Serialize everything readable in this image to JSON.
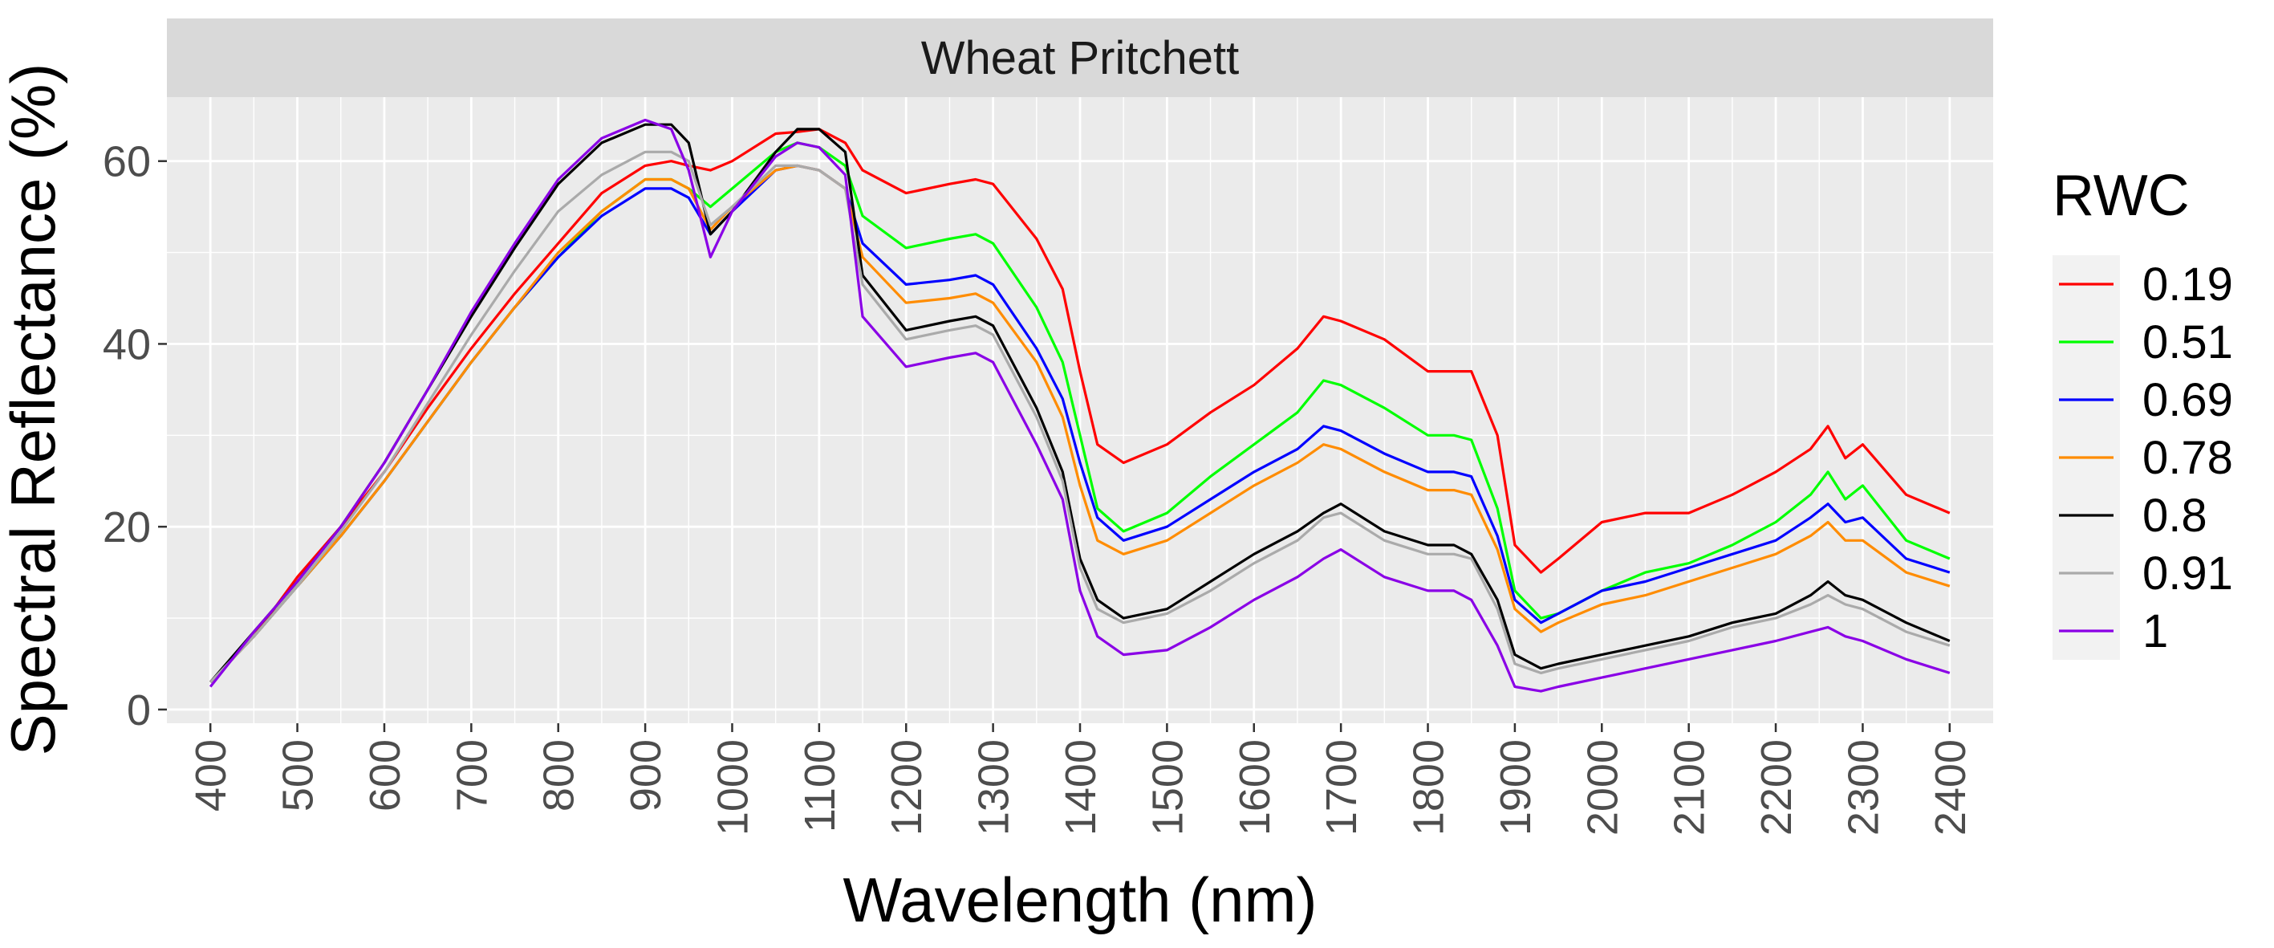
{
  "chart_data": {
    "type": "line",
    "facet_title": "Wheat Pritchett",
    "xlabel": "Wavelength (nm)",
    "ylabel": "Spectral Reflectance (%)",
    "xlim": [
      350,
      2450
    ],
    "ylim": [
      -1.5,
      67
    ],
    "x_ticks": [
      400,
      500,
      600,
      700,
      800,
      900,
      1000,
      1100,
      1200,
      1300,
      1400,
      1500,
      1600,
      1700,
      1800,
      1900,
      2000,
      2100,
      2200,
      2300,
      2400
    ],
    "x_tick_labels": [
      "400",
      "500",
      "600",
      "700",
      "800",
      "900",
      "1000",
      "1100",
      "1200",
      "1300",
      "1400",
      "1500",
      "1600",
      "1700",
      "1800",
      "1900",
      "2000",
      "2100",
      "2200",
      "2300",
      "2400"
    ],
    "y_ticks": [
      0,
      20,
      40,
      60
    ],
    "y_tick_labels": [
      "0",
      "20",
      "40",
      "60"
    ],
    "grid": true,
    "legend": {
      "title": "RWC",
      "position": "right"
    },
    "x": [
      400,
      450,
      500,
      550,
      600,
      650,
      700,
      750,
      800,
      850,
      900,
      930,
      950,
      975,
      1000,
      1050,
      1075,
      1100,
      1130,
      1150,
      1200,
      1250,
      1280,
      1300,
      1350,
      1380,
      1400,
      1420,
      1450,
      1500,
      1550,
      1600,
      1650,
      1680,
      1700,
      1750,
      1800,
      1830,
      1850,
      1880,
      1900,
      1930,
      1950,
      2000,
      2050,
      2100,
      2150,
      2200,
      2240,
      2260,
      2280,
      2300,
      2350,
      2400
    ],
    "series": [
      {
        "name": "0.19",
        "color": "#ff0000",
        "values": [
          3,
          8,
          14.5,
          20,
          26,
          33,
          39.5,
          45.5,
          51,
          56.5,
          59.5,
          60,
          59.5,
          59,
          60,
          63,
          63.2,
          63.5,
          62,
          59,
          56.5,
          57.5,
          58,
          57.5,
          51.5,
          46,
          37,
          29,
          27,
          29,
          32.5,
          35.5,
          39.5,
          43,
          42.5,
          40.5,
          37,
          37,
          37,
          30,
          18,
          15,
          16.5,
          20.5,
          21.5,
          21.5,
          23.5,
          26,
          28.5,
          31,
          27.5,
          29,
          23.5,
          21.5
        ]
      },
      {
        "name": "0.51",
        "color": "#00ff00",
        "values": [
          3,
          8,
          13.5,
          19,
          25,
          31.5,
          38,
          44,
          49.5,
          54.5,
          58,
          58,
          57,
          55,
          57,
          61,
          62,
          61.5,
          59.5,
          54,
          50.5,
          51.5,
          52,
          51,
          44,
          38,
          30,
          22,
          19.5,
          21.5,
          25.5,
          29,
          32.5,
          36,
          35.5,
          33,
          30,
          30,
          29.5,
          22,
          13,
          10,
          10.5,
          13,
          15,
          16,
          18,
          20.5,
          23.5,
          26,
          23,
          24.5,
          18.5,
          16.5
        ]
      },
      {
        "name": "0.69",
        "color": "#0000ff",
        "values": [
          3,
          8,
          13.5,
          19,
          25,
          31.5,
          38,
          44,
          49.5,
          54,
          57,
          57,
          56,
          52,
          54.5,
          59,
          59.5,
          59,
          57,
          51,
          46.5,
          47,
          47.5,
          46.5,
          39.5,
          34,
          27,
          21,
          18.5,
          20,
          23,
          26,
          28.5,
          31,
          30.5,
          28,
          26,
          26,
          25.5,
          19,
          12,
          9.5,
          10.5,
          13,
          14,
          15.5,
          17,
          18.5,
          21,
          22.5,
          20.5,
          21,
          16.5,
          15
        ]
      },
      {
        "name": "0.78",
        "color": "#ff8c00",
        "values": [
          3,
          8,
          13.5,
          19,
          25,
          31.5,
          38,
          44,
          50,
          54.5,
          58,
          58,
          57,
          52.5,
          55,
          59,
          59.5,
          59,
          57,
          49.5,
          44.5,
          45,
          45.5,
          44.5,
          38,
          32,
          24.5,
          18.5,
          17,
          18.5,
          21.5,
          24.5,
          27,
          29,
          28.5,
          26,
          24,
          24,
          23.5,
          17.5,
          11,
          8.5,
          9.5,
          11.5,
          12.5,
          14,
          15.5,
          17,
          19,
          20.5,
          18.5,
          18.5,
          15,
          13.5
        ]
      },
      {
        "name": "0.8",
        "color": "#000000",
        "values": [
          3,
          8.5,
          14,
          20,
          27,
          35,
          43,
          50.5,
          57.5,
          62,
          64,
          64,
          62,
          52,
          54.5,
          61,
          63.5,
          63.5,
          61,
          47.5,
          41.5,
          42.5,
          43,
          42,
          33,
          26,
          16.5,
          12,
          10,
          11,
          14,
          17,
          19.5,
          21.5,
          22.5,
          19.5,
          18,
          18,
          17,
          12,
          6,
          4.5,
          5,
          6,
          7,
          8,
          9.5,
          10.5,
          12.5,
          14,
          12.5,
          12,
          9.5,
          7.5
        ]
      },
      {
        "name": "0.91",
        "color": "#aaaaaa",
        "values": [
          3,
          8,
          13.5,
          19.5,
          26,
          33.5,
          41,
          48,
          54.5,
          58.5,
          61,
          61,
          60,
          53,
          55,
          59.5,
          59.5,
          59,
          57,
          46.5,
          40.5,
          41.5,
          42,
          41,
          32,
          25,
          15.5,
          11,
          9.5,
          10.5,
          13,
          16,
          18.5,
          21,
          21.5,
          18.5,
          17,
          17,
          16.5,
          11,
          5,
          4,
          4.5,
          5.5,
          6.5,
          7.5,
          9,
          10,
          11.5,
          12.5,
          11.5,
          11,
          8.5,
          7
        ]
      },
      {
        "name": "1",
        "color": "#8a00e6",
        "values": [
          2.5,
          8.5,
          14,
          20,
          27,
          35,
          43.5,
          51,
          58,
          62.5,
          64.5,
          63.5,
          59,
          49.5,
          54.5,
          60.5,
          62,
          61.5,
          58.5,
          43,
          37.5,
          38.5,
          39,
          38,
          29,
          23,
          13,
          8,
          6,
          6.5,
          9,
          12,
          14.5,
          16.5,
          17.5,
          14.5,
          13,
          13,
          12,
          7,
          2.5,
          2,
          2.5,
          3.5,
          4.5,
          5.5,
          6.5,
          7.5,
          8.5,
          9,
          8,
          7.5,
          5.5,
          4
        ]
      }
    ]
  }
}
